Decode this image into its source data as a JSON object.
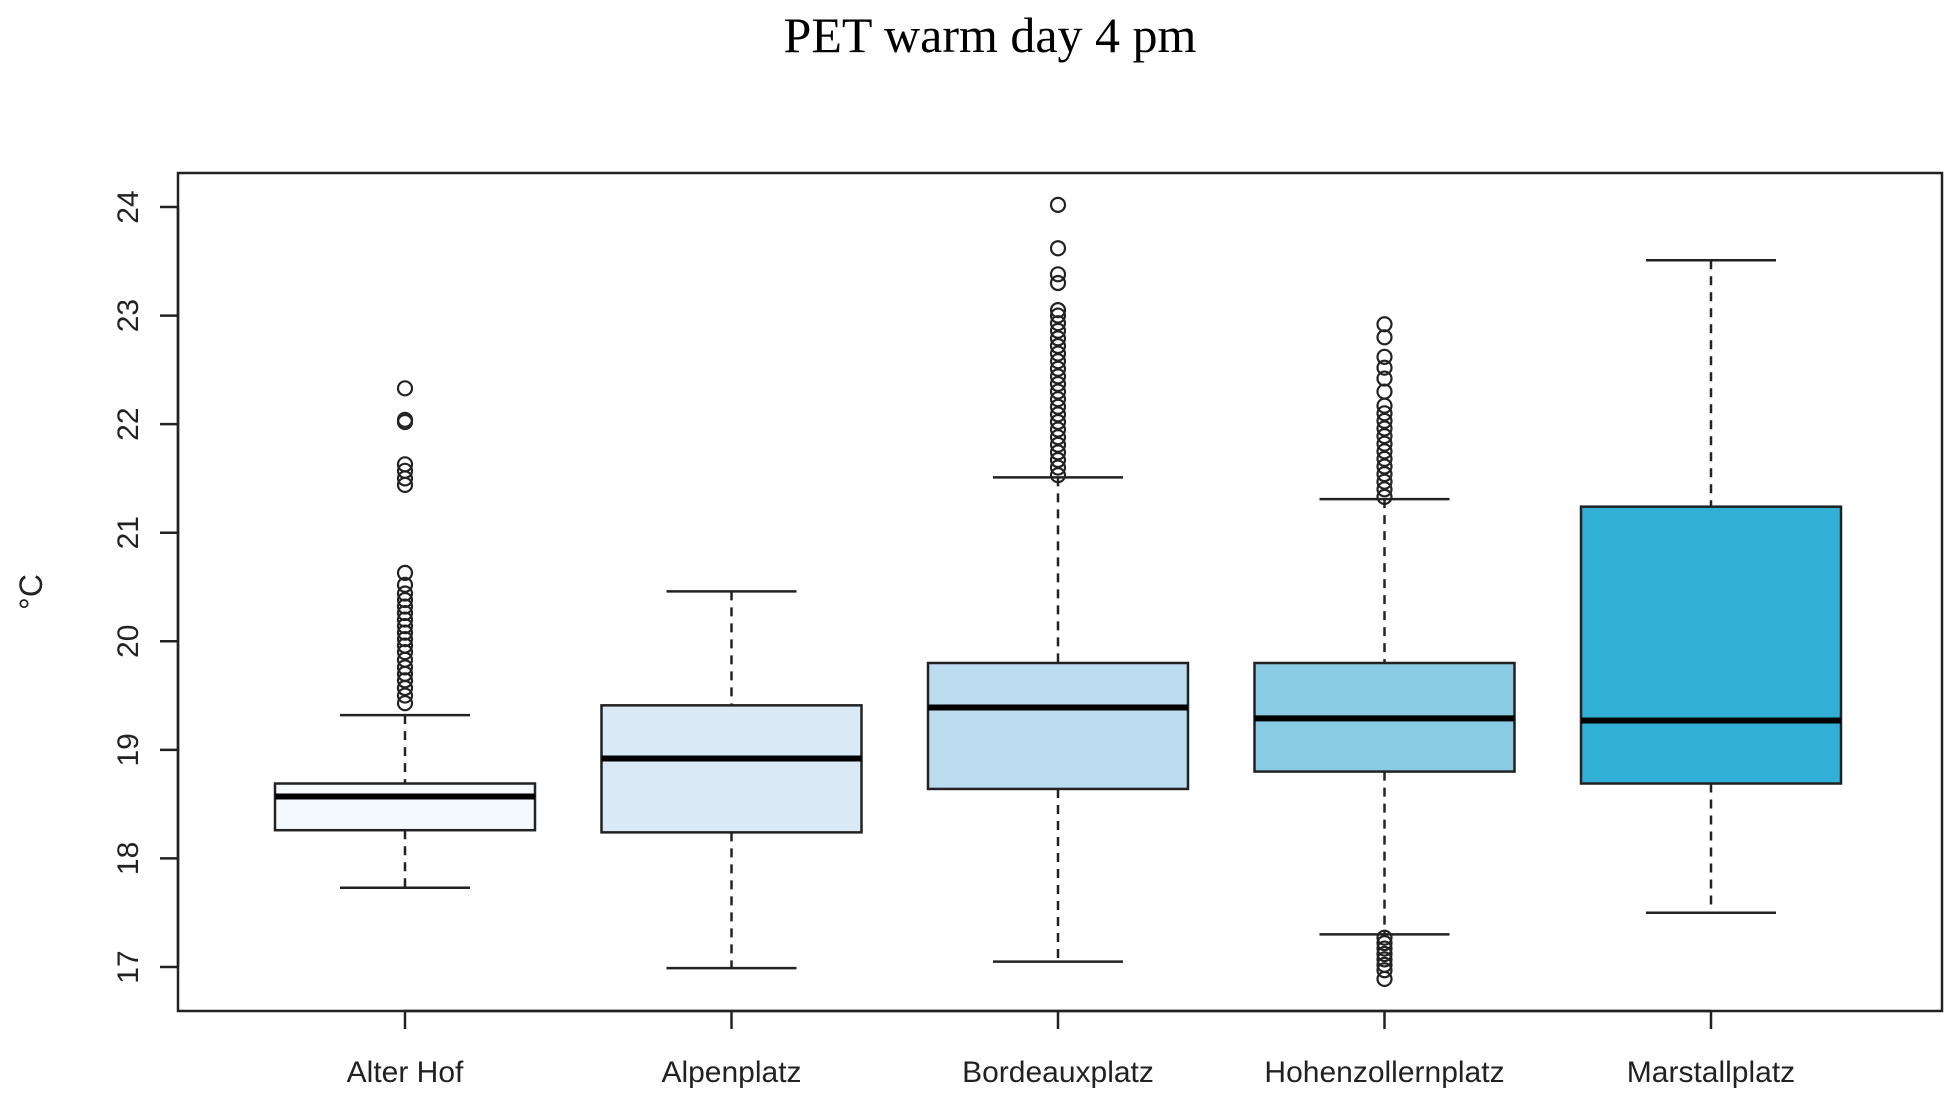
{
  "chart_data": {
    "type": "box",
    "title": "PET warm day 4 pm",
    "xlabel": "",
    "ylabel": "°C",
    "ylim": [
      16.75,
      24.2
    ],
    "yticks": [
      17,
      18,
      19,
      20,
      21,
      22,
      23,
      24
    ],
    "grid": false,
    "categories": [
      "Alter Hof",
      "Alpenplatz",
      "Bordeauxplatz",
      "Hohenzollernplatz",
      "Marstallplatz"
    ],
    "boxes": [
      {
        "name": "Alter Hof",
        "color": "#f4f9fe",
        "whisker_low": 17.73,
        "q1": 18.26,
        "median": 18.57,
        "q3": 18.69,
        "whisker_high": 19.32,
        "outliers_high": [
          19.43,
          19.5,
          19.57,
          19.64,
          19.7,
          19.76,
          19.83,
          19.9,
          19.96,
          20.02,
          20.08,
          20.14,
          20.2,
          20.26,
          20.32,
          20.38,
          20.44,
          20.52,
          20.63,
          21.44,
          21.5,
          21.57,
          21.63,
          22.02,
          22.04,
          22.33
        ],
        "outliers_low": []
      },
      {
        "name": "Alpenplatz",
        "color": "#d9eaf6",
        "whisker_low": 16.99,
        "q1": 18.24,
        "median": 18.92,
        "q3": 19.41,
        "whisker_high": 20.46,
        "outliers_high": [],
        "outliers_low": []
      },
      {
        "name": "Bordeauxplatz",
        "color": "#bcdcf0",
        "whisker_low": 17.05,
        "q1": 18.64,
        "median": 19.39,
        "q3": 19.8,
        "whisker_high": 21.51,
        "outliers_high": [
          21.53,
          21.6,
          21.67,
          21.74,
          21.81,
          21.88,
          21.95,
          22.02,
          22.09,
          22.16,
          22.23,
          22.3,
          22.37,
          22.44,
          22.51,
          22.58,
          22.65,
          22.72,
          22.79,
          22.86,
          22.93,
          23.0,
          23.05,
          23.3,
          23.38,
          23.62,
          24.02
        ],
        "outliers_low": []
      },
      {
        "name": "Hohenzollernplatz",
        "color": "#88cbe3",
        "whisker_low": 17.3,
        "q1": 18.8,
        "median": 19.29,
        "q3": 19.8,
        "whisker_high": 21.31,
        "outliers_high": [
          21.33,
          21.4,
          21.47,
          21.54,
          21.61,
          21.68,
          21.75,
          21.82,
          21.89,
          21.96,
          22.03,
          22.1,
          22.17,
          22.3,
          22.42,
          22.52,
          22.62,
          22.8,
          22.92
        ],
        "outliers_low": [
          16.89,
          16.97,
          17.02,
          17.07,
          17.12,
          17.17,
          17.22,
          17.27
        ]
      },
      {
        "name": "Marstallplatz",
        "color": "#32afd7",
        "whisker_low": 17.5,
        "q1": 18.69,
        "median": 19.27,
        "q3": 21.24,
        "whisker_high": 23.51,
        "outliers_high": [],
        "outliers_low": []
      }
    ]
  }
}
